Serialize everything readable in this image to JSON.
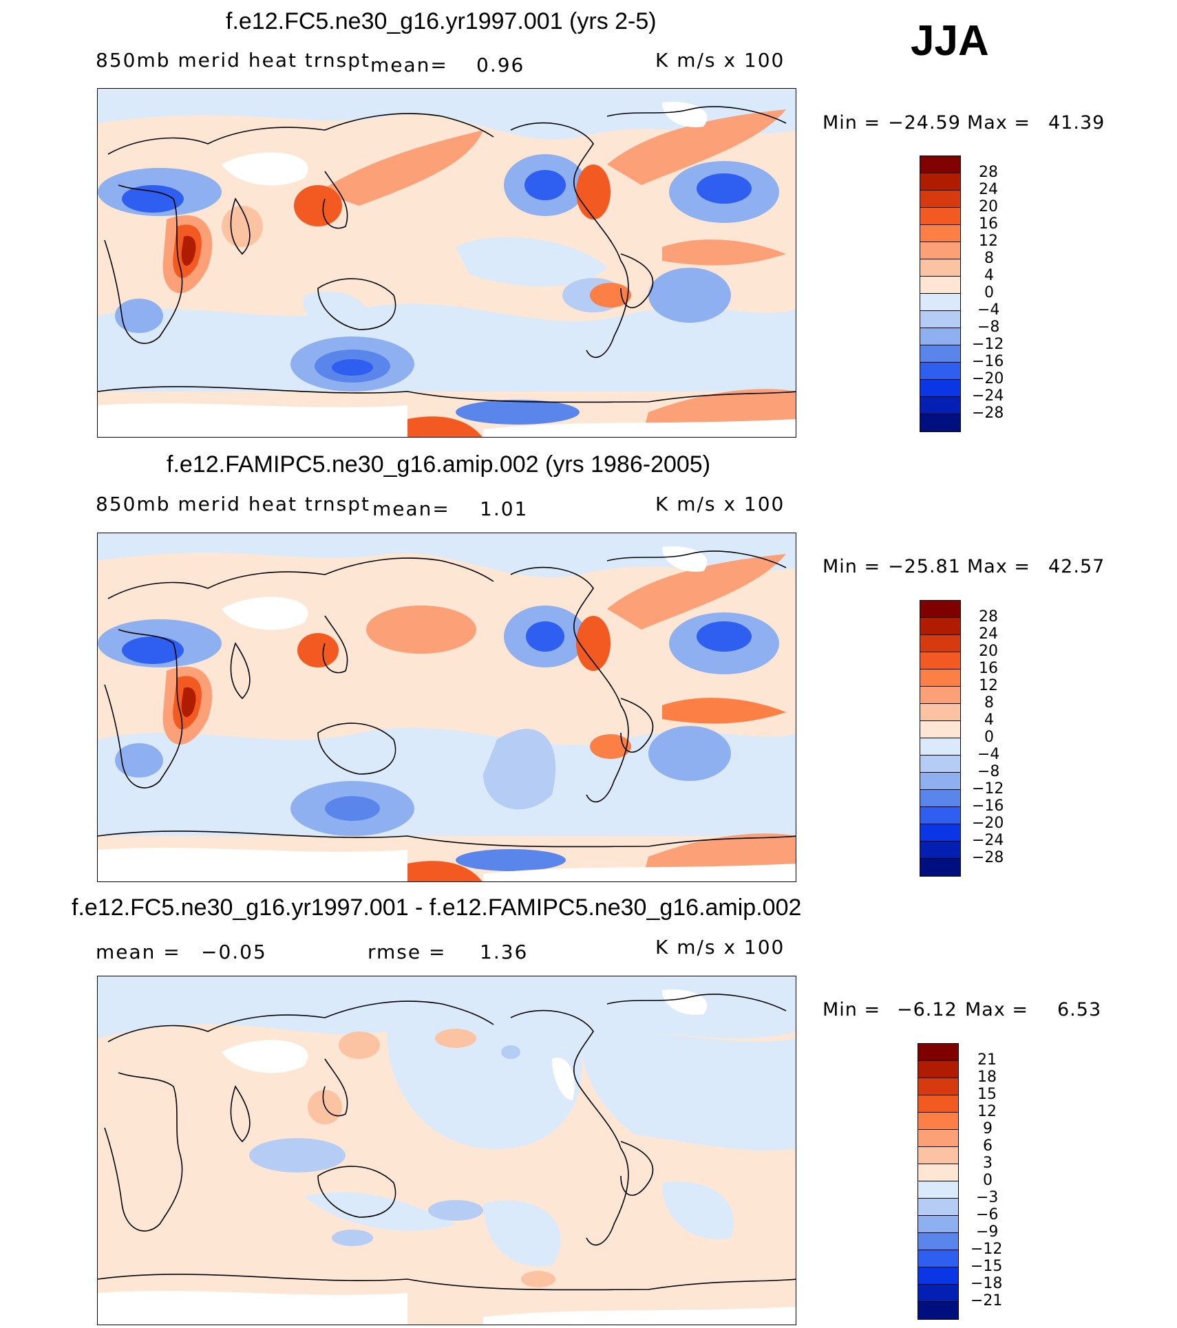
{
  "season": "JJA",
  "units": "K m/s x 100",
  "panels": [
    {
      "title": "f.e12.FC5.ne30_g16.yr1997.001 (yrs 2-5)",
      "variable": "850mb merid heat trnspt",
      "stat_label": "mean=",
      "stat_value": "0.96",
      "min_label": "Min =",
      "min_value": "−24.59",
      "max_label": "Max =",
      "max_value": "41.39",
      "levels": [
        "28",
        "24",
        "20",
        "16",
        "12",
        "8",
        "4",
        "0",
        "−4",
        "−8",
        "−12",
        "−16",
        "−20",
        "−24",
        "−28"
      ]
    },
    {
      "title": "f.e12.FAMIPC5.ne30_g16.amip.002 (yrs 1986-2005)",
      "variable": "850mb merid heat trnspt",
      "stat_label": "mean=",
      "stat_value": "1.01",
      "min_label": "Min =",
      "min_value": "−25.81",
      "max_label": "Max =",
      "max_value": "42.57",
      "levels": [
        "28",
        "24",
        "20",
        "16",
        "12",
        "8",
        "4",
        "0",
        "−4",
        "−8",
        "−12",
        "−16",
        "−20",
        "−24",
        "−28"
      ]
    },
    {
      "title": "f.e12.FC5.ne30_g16.yr1997.001 - f.e12.FAMIPC5.ne30_g16.amip.002",
      "mean_label": "mean =",
      "mean_value": "−0.05",
      "rmse_label": "rmse =",
      "rmse_value": "1.36",
      "min_label": "Min =",
      "min_value": "−6.12",
      "max_label": "Max =",
      "max_value": "6.53",
      "levels": [
        "21",
        "18",
        "15",
        "12",
        "9",
        "6",
        "3",
        "0",
        "−3",
        "−6",
        "−9",
        "−12",
        "−15",
        "−18",
        "−21"
      ]
    }
  ],
  "colorbar_colors": [
    "#800000",
    "#b01c00",
    "#d83a0f",
    "#f25a22",
    "#fc7f45",
    "#fba077",
    "#fcc3a2",
    "#fde6d4",
    "#dbeafa",
    "#b5cdf5",
    "#8fb0f0",
    "#5a86ec",
    "#2e5ff0",
    "#0b36e6",
    "#0420b4",
    "#000f80"
  ]
}
